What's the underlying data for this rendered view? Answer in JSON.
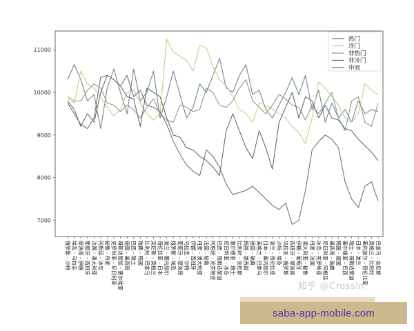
{
  "chart_data": {
    "type": "line",
    "title": "",
    "xlabel": "",
    "ylabel": "",
    "ylim": [
      6600,
      11450
    ],
    "yticks": [
      7000,
      8000,
      9000,
      10000,
      11000
    ],
    "grid": false,
    "legend_position": "upper right",
    "categories": [
      "俄罗斯 - 沙特",
      "埃及 - 乌拉圭",
      "摩洛哥 - 伊朗",
      "葡萄牙 - 西班牙",
      "法国 - 澳大利亚",
      "阿根廷 - 冰岛",
      "秘鲁 - 丹麦",
      "克罗地亚 - 尼日利亚",
      "哥斯达黎加 - 塞尔维亚",
      "德国 - 墨西哥",
      "巴西 - 瑞士",
      "瑞典 - 韩国",
      "比利时 - 巴拿马",
      "突尼斯 - 英格兰",
      "哥伦比亚 - 日本",
      "波兰 - 塞内加尔",
      "俄罗斯 - 埃及",
      "葡萄牙 - 摩洛哥",
      "乌拉圭 - 沙特",
      "伊朗 - 西班牙",
      "丹麦 - 澳大利亚",
      "法国 - 秘鲁",
      "阿根廷 - 克罗地亚",
      "巴西 - 哥斯达黎加",
      "尼日利亚 - 冰岛",
      "塞尔维亚 - 瑞士",
      "比利时 - 突尼斯",
      "韩国 - 墨西哥",
      "德国 - 瑞典",
      "英格兰 - 巴拿马",
      "日本 - 塞内加尔",
      "波兰 - 哥伦比亚",
      "沙特 - 埃及",
      "乌拉圭 - 俄罗斯",
      "西班牙 - 摩洛哥",
      "伊朗 - 葡萄牙",
      "澳大利亚 - 秘鲁",
      "丹麦 - 法国",
      "冰岛 - 克罗地亚",
      "尼日利亚 - 阿根廷",
      "墨西哥 - 瑞典",
      "韩国 - 德国",
      "塞尔维亚 - 巴西",
      "瑞士 - 哥斯达黎加",
      "日本 - 波兰",
      "塞内加尔 - 哥伦比亚",
      "英格兰 - 比利时",
      "巴拿马 - 突尼斯"
    ],
    "series": [
      {
        "name": "热门",
        "color": "#6f8791",
        "values": [
          10300,
          10650,
          10300,
          9800,
          9950,
          9150,
          10100,
          10550,
          10000,
          9500,
          10550,
          9800,
          10000,
          10500,
          9400,
          9900,
          10500,
          9950,
          9400,
          9650,
          10200,
          10000,
          10400,
          10800,
          10100,
          10000,
          10400,
          10650,
          9950,
          10050,
          9600,
          9400,
          9700,
          10000,
          10350,
          9950,
          10400,
          9600,
          10050,
          9300,
          9750,
          9400,
          9600,
          9300,
          9800,
          9500,
          9600,
          9550
        ]
      },
      {
        "name": "冷门",
        "color": "#d2c883",
        "values": [
          9850,
          9750,
          10500,
          10200,
          10100,
          9900,
          9650,
          9450,
          9600,
          10000,
          10050,
          9750,
          9500,
          9350,
          9500,
          11250,
          10950,
          10850,
          10750,
          10500,
          11100,
          11050,
          10600,
          10300,
          10150,
          9900,
          9600,
          9500,
          9300,
          9750,
          9700,
          9600,
          9500,
          9400,
          9200,
          9050,
          8800,
          9400,
          10250,
          10100,
          9900,
          9700,
          9400,
          9300,
          9500,
          10200,
          10050,
          9950
        ]
      },
      {
        "name": "非热门",
        "color": "#8a9a8c",
        "values": [
          9900,
          9800,
          9800,
          10050,
          10200,
          10100,
          9750,
          9700,
          9550,
          9700,
          9600,
          9400,
          9650,
          9850,
          9500,
          9350,
          9300,
          9700,
          9650,
          9550,
          9600,
          10100,
          10000,
          9700,
          9650,
          9800,
          10100,
          10300,
          9800,
          9650,
          9500,
          9700,
          9950,
          9850,
          9700,
          9650,
          9350,
          9700,
          9500,
          9750,
          10000,
          9400,
          9100,
          9800,
          9900,
          9300,
          9200,
          9750
        ]
      },
      {
        "name": "非冷门",
        "color": "#5e6d70",
        "values": [
          9800,
          9600,
          9200,
          9500,
          9300,
          10000,
          10400,
          10300,
          10150,
          9900,
          9850,
          9200,
          10100,
          10000,
          9900,
          9400,
          9000,
          8950,
          8700,
          8650,
          8500,
          8400,
          8250,
          8050,
          9100,
          9500,
          9100,
          8700,
          8450,
          9100,
          8700,
          8200,
          9300,
          9650,
          10000,
          9400,
          9900,
          9800,
          9400,
          9700,
          9400,
          9350,
          9150,
          9100,
          8900,
          8750,
          8600,
          8400
        ]
      },
      {
        "name": "中间",
        "color": "#7d6b7b",
        "values": [
          9750,
          9500,
          9250,
          9150,
          9400,
          10350,
          10400,
          10300,
          10150,
          10400,
          9900,
          10050,
          9700,
          9650,
          9550,
          9250,
          8850,
          8550,
          8300,
          8150,
          8050,
          8650,
          8500,
          8250,
          7850,
          7600,
          7650,
          7700,
          7800,
          7650,
          7500,
          7350,
          7250,
          7400,
          6900,
          7000,
          7700,
          8650,
          8850,
          9000,
          8900,
          8700,
          7900,
          7500,
          7300,
          7800,
          7900,
          7450
        ]
      }
    ]
  },
  "legend": {
    "items": [
      "热门",
      "冷门",
      "非热门",
      "非冷门",
      "中间"
    ]
  },
  "watermark": "知乎 @Crossin",
  "banner": {
    "text": "saba-app-mobile.com"
  }
}
